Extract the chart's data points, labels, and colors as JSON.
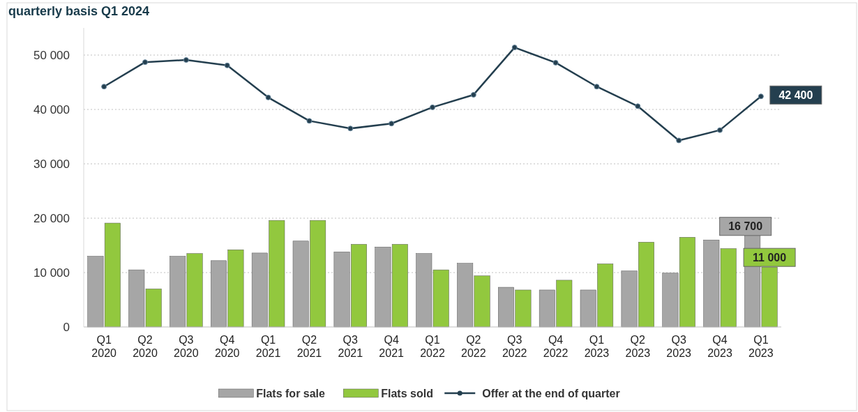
{
  "chart_data": {
    "type": "bar",
    "title": "quarterly basis Q1 2024",
    "categories": [
      "Q1 2020",
      "Q2 2020",
      "Q3 2020",
      "Q4 2020",
      "Q1 2021",
      "Q2 2021",
      "Q3 2021",
      "Q4 2021",
      "Q1 2022",
      "Q2 2022",
      "Q3 2022",
      "Q4 2022",
      "Q1 2023",
      "Q2 2023",
      "Q3 2023",
      "Q4 2023",
      "Q1 2023"
    ],
    "series": [
      {
        "name": "Flats for sale",
        "color": "#a6a6a6",
        "values": [
          13000,
          10500,
          13000,
          12200,
          13600,
          15800,
          13800,
          14700,
          13500,
          11700,
          7300,
          6800,
          6800,
          10300,
          9900,
          16000,
          16700
        ],
        "value_labels": [
          null,
          null,
          null,
          null,
          null,
          null,
          null,
          null,
          null,
          null,
          null,
          null,
          null,
          null,
          null,
          null,
          "16 700"
        ]
      },
      {
        "name": "Flats sold",
        "color": "#92c83e",
        "values": [
          19100,
          7000,
          13500,
          14200,
          19600,
          19600,
          15200,
          15200,
          10500,
          9400,
          6800,
          8600,
          11600,
          15600,
          16500,
          14400,
          11000
        ],
        "value_labels": [
          null,
          null,
          null,
          null,
          null,
          null,
          null,
          null,
          null,
          null,
          null,
          null,
          null,
          null,
          null,
          null,
          "11 000"
        ]
      },
      {
        "name": "Offer at the end of quarter",
        "type": "line",
        "color": "#243f4f",
        "values": [
          44200,
          48700,
          49100,
          48100,
          42200,
          37900,
          36500,
          37400,
          40400,
          42700,
          51400,
          48600,
          44200,
          40600,
          34300,
          36200,
          42400
        ],
        "value_labels": [
          null,
          null,
          null,
          null,
          null,
          null,
          null,
          null,
          null,
          null,
          null,
          null,
          null,
          null,
          null,
          null,
          "42 400"
        ]
      }
    ],
    "ylim": [
      0,
      55000
    ],
    "yticks": [
      {
        "value": 0,
        "label": "0"
      },
      {
        "value": 10000,
        "label": "10 000"
      },
      {
        "value": 20000,
        "label": "20 000"
      },
      {
        "value": 30000,
        "label": "30 000"
      },
      {
        "value": 40000,
        "label": "40 000"
      },
      {
        "value": 50000,
        "label": "50 000"
      }
    ],
    "grid": "y",
    "legend": "bottom",
    "marker": "circle",
    "line_style": "solid"
  }
}
